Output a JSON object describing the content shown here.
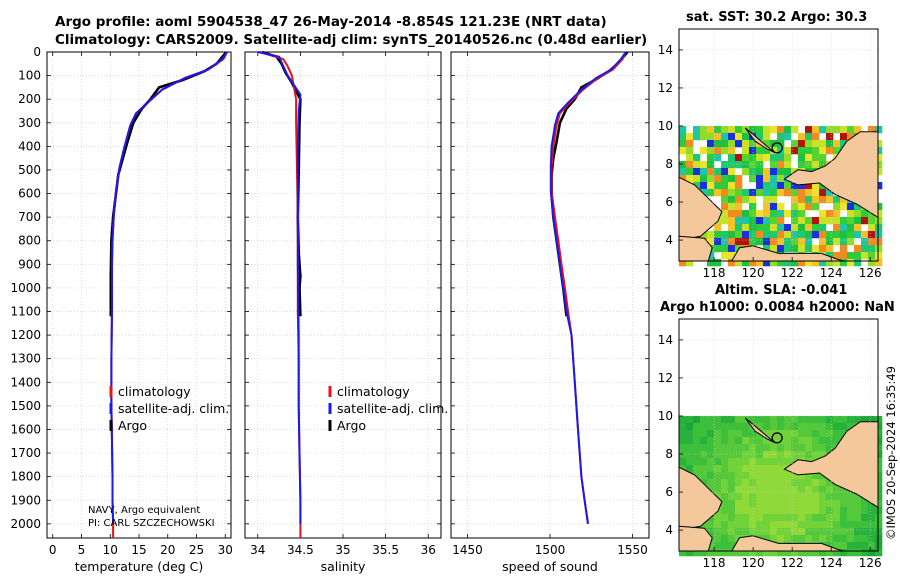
{
  "titles": {
    "line1": "Argo profile: aoml 5904538_47 26-May-2014 -8.854S 121.23E (NRT data)",
    "line2": "Climatology: CARS2009. Satellite-adj clim: synTS_20140526.nc (0.48d earlier)"
  },
  "map_sst": {
    "title": "sat. SST: 30.2 Argo: 30.3"
  },
  "map_sla": {
    "title1": "Altim. SLA: -0.041",
    "title2": "Argo h1000: 0.0084 h2000: NaN"
  },
  "map_axes": {
    "x_ticks": [
      118,
      120,
      122,
      124,
      126
    ],
    "y_ticks": [
      4,
      6,
      8,
      10,
      12,
      14
    ],
    "xlim": [
      116.2,
      126.4
    ],
    "ylim": [
      2.9,
      15.1
    ],
    "float_position": {
      "lon": 121.23,
      "lat": 8.85
    }
  },
  "stamp": "©IMOS 20-Sep-2024 16:35:49",
  "colors": {
    "climatology": "#ee1111",
    "satellite": "#1a1aee",
    "argo": "#000000",
    "land": "#f5c89c",
    "grid": "#cfcfcf"
  },
  "chart_data": [
    {
      "type": "line",
      "xlabel": "temperature (deg C)",
      "ylabel": "",
      "xlim": [
        -1,
        31
      ],
      "ylim": [
        2060,
        0
      ],
      "x_ticks": [
        0,
        5,
        10,
        15,
        20,
        25,
        30
      ],
      "y_ticks": [
        0,
        100,
        200,
        300,
        400,
        500,
        600,
        700,
        800,
        900,
        1000,
        1100,
        1200,
        1300,
        1400,
        1500,
        1600,
        1700,
        1800,
        1900,
        2000
      ],
      "legend": [
        "climatology",
        "satellite-adj. clim.",
        "Argo"
      ],
      "legend_position": "lower-center",
      "annotation": [
        "NAVY, Argo equivalent",
        "PI: CARL SZCZECHOWSKI"
      ],
      "series": [
        {
          "name": "climatology",
          "color": "red",
          "x": [
            30.3,
            29.7,
            27,
            23,
            19,
            16.5,
            14.5,
            13.5,
            12.5,
            11.6,
            11,
            10.6,
            10.4,
            10.3,
            10.3,
            10.2,
            10.2,
            10.3,
            10.4,
            10.4,
            10.5,
            10.5
          ],
          "y": [
            0,
            30,
            75,
            110,
            160,
            215,
            260,
            310,
            400,
            490,
            590,
            700,
            800,
            900,
            1100,
            1300,
            1500,
            1650,
            1800,
            1900,
            2000,
            2060
          ]
        },
        {
          "name": "satellite-adj. clim.",
          "color": "blue",
          "x": [
            30.3,
            29.5,
            27,
            23,
            19,
            16.5,
            14.5,
            13.5,
            12.5,
            11.6,
            11,
            10.6,
            10.4,
            10.3,
            10.3,
            10.2,
            10.2,
            10.3,
            10.4,
            10.4,
            10.5
          ],
          "y": [
            0,
            30,
            75,
            110,
            160,
            215,
            260,
            310,
            400,
            490,
            590,
            700,
            800,
            900,
            1100,
            1300,
            1500,
            1650,
            1800,
            1900,
            2000
          ]
        },
        {
          "name": "Argo",
          "color": "black",
          "x": [
            30.2,
            28.5,
            26.5,
            22.5,
            18.5,
            17,
            15.5,
            14,
            13,
            12.2,
            11.4,
            11,
            10.5,
            10.2,
            10.1,
            10.1
          ],
          "y": [
            0,
            50,
            80,
            120,
            150,
            200,
            240,
            300,
            380,
            450,
            520,
            600,
            700,
            800,
            950,
            1120
          ]
        }
      ]
    },
    {
      "type": "line",
      "xlabel": "salinity",
      "ylabel": "",
      "xlim": [
        33.85,
        36.15
      ],
      "ylim": [
        2060,
        0
      ],
      "x_ticks": [
        34,
        34.5,
        35,
        35.5,
        36
      ],
      "legend": [
        "climatology",
        "satellite-adj. clim.",
        "Argo"
      ],
      "legend_position": "lower-right",
      "series": [
        {
          "name": "climatology",
          "color": "red",
          "x": [
            34.02,
            34.3,
            34.35,
            34.4,
            34.45,
            34.45,
            34.46,
            34.47,
            34.47,
            34.47,
            34.48,
            34.48,
            34.49,
            34.5,
            34.5
          ],
          "y": [
            0,
            30,
            60,
            100,
            200,
            300,
            500,
            700,
            900,
            1100,
            1300,
            1500,
            1700,
            1900,
            2060
          ]
        },
        {
          "name": "satellite-adj. clim.",
          "color": "blue",
          "x": [
            34.0,
            34.25,
            34.3,
            34.35,
            34.5,
            34.48,
            34.47,
            34.47,
            34.47,
            34.48,
            34.48,
            34.49,
            34.5,
            34.5
          ],
          "y": [
            0,
            20,
            60,
            100,
            180,
            250,
            400,
            600,
            900,
            1200,
            1500,
            1700,
            1900,
            2000
          ]
        },
        {
          "name": "Argo",
          "color": "black",
          "x": [
            34.05,
            34.22,
            34.28,
            34.33,
            34.4,
            34.44,
            34.5,
            34.49,
            34.48,
            34.47,
            34.48,
            34.49,
            34.5,
            34.49,
            34.5
          ],
          "y": [
            0,
            20,
            50,
            90,
            130,
            160,
            200,
            300,
            500,
            700,
            850,
            900,
            950,
            1000,
            1120
          ]
        }
      ]
    },
    {
      "type": "line",
      "xlabel": "speed of sound",
      "ylabel": "",
      "xlim": [
        1440,
        1560
      ],
      "ylim": [
        2060,
        0
      ],
      "x_ticks": [
        1450,
        1500,
        1550
      ],
      "series": [
        {
          "name": "climatology",
          "color": "red",
          "x": [
            1546,
            1544,
            1538,
            1529,
            1520,
            1512,
            1506,
            1504,
            1502,
            1501,
            1501,
            1503,
            1505,
            1507,
            1509,
            1511,
            1513,
            1515,
            1517,
            1519,
            1521,
            1523
          ],
          "y": [
            0,
            30,
            75,
            110,
            160,
            215,
            260,
            310,
            400,
            490,
            590,
            700,
            800,
            900,
            1000,
            1100,
            1200,
            1400,
            1600,
            1800,
            1900,
            2000
          ]
        },
        {
          "name": "satellite-adj. clim.",
          "color": "blue",
          "x": [
            1546,
            1543,
            1537,
            1528,
            1519,
            1511,
            1505,
            1503,
            1501,
            1500.5,
            1500.5,
            1502,
            1504,
            1506,
            1508,
            1510,
            1513,
            1515,
            1517,
            1519,
            1521,
            1523
          ],
          "y": [
            0,
            30,
            75,
            110,
            160,
            215,
            260,
            310,
            400,
            490,
            590,
            700,
            800,
            900,
            1000,
            1100,
            1200,
            1400,
            1600,
            1800,
            1900,
            2000
          ]
        },
        {
          "name": "Argo",
          "color": "black",
          "x": [
            1547,
            1541,
            1536,
            1527,
            1519,
            1515,
            1510,
            1506,
            1504,
            1502,
            1501,
            1501,
            1502,
            1504,
            1506,
            1508,
            1510
          ],
          "y": [
            0,
            50,
            80,
            120,
            150,
            200,
            240,
            300,
            380,
            450,
            520,
            600,
            700,
            800,
            900,
            1000,
            1120
          ]
        }
      ]
    }
  ]
}
